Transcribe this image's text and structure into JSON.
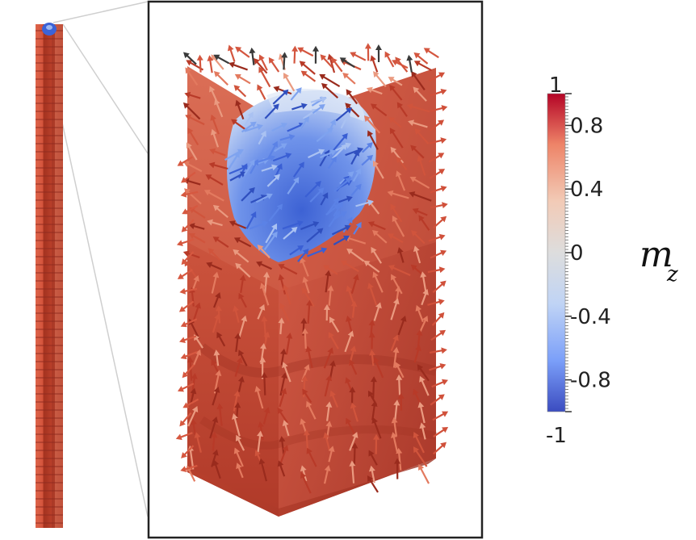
{
  "colorbar": {
    "ticks": [
      "1",
      "0.8",
      "0.4",
      "0",
      "-0.4",
      "-0.8",
      "-1"
    ],
    "label_main": "m",
    "label_sub": "z",
    "colormap": [
      "#3b4cc0",
      "#7b9ff9",
      "#c0d4f5",
      "#dddddd",
      "#f2cbb7",
      "#ee8468",
      "#b40426"
    ]
  },
  "colors": {
    "frame": "#222222",
    "zoom_lines": "#cccccc",
    "rod_red": "#d9583f",
    "rod_dark": "#9a2a1e",
    "rod_light": "#ef8a6e",
    "cap_blue": "#3b63d8",
    "box_dark": "#8f2a1f",
    "box_mid": "#c64b36",
    "box_light": "#e99a80",
    "domain_blue": "#4a78e0",
    "domain_light": "#b7cdf3"
  }
}
